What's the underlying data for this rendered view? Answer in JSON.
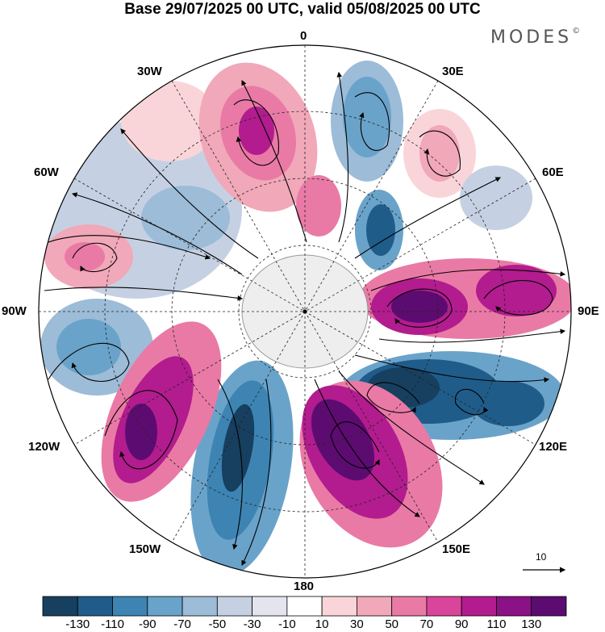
{
  "title": "Base 29/07/2025 00 UTC, valid 05/08/2025 00 UTC",
  "brand": {
    "name": "MODES",
    "mark": "©"
  },
  "longitude_labels": {
    "lon_0": "0",
    "lon_30e": "30E",
    "lon_60e": "60E",
    "lon_90e": "90E",
    "lon_120e": "120E",
    "lon_150e": "150E",
    "lon_180": "180",
    "lon_150w": "150W",
    "lon_120w": "120W",
    "lon_90w": "90W",
    "lon_60w": "60W",
    "lon_30w": "30W"
  },
  "vector_reference": {
    "label": "10"
  },
  "colorbar": {
    "ticks": [
      "-130",
      "-110",
      "-90",
      "-70",
      "-50",
      "-30",
      "-10",
      "10",
      "30",
      "50",
      "70",
      "90",
      "110",
      "130"
    ],
    "colors": [
      "#173f5f",
      "#1f5c8a",
      "#3d84b3",
      "#6aa3c9",
      "#9cbcd8",
      "#c5d1e3",
      "#e4e4ef",
      "#ffffff",
      "#f9d5d9",
      "#f1a8b8",
      "#e97aa5",
      "#d8459a",
      "#b21c8e",
      "#8a1186",
      "#5c0c70"
    ]
  }
}
